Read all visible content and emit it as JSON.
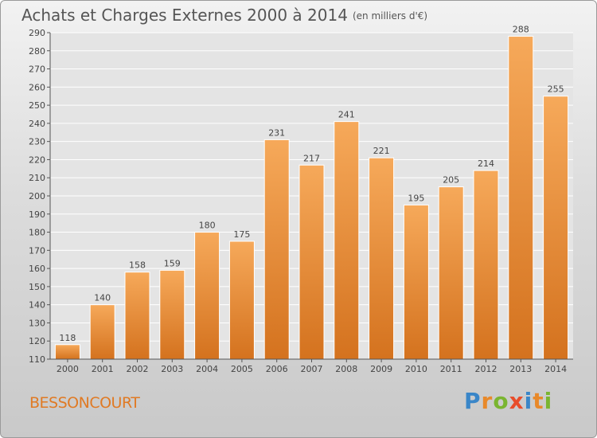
{
  "title": "Achats et Charges Externes 2000 à 2014",
  "unit": "(en milliers d'€)",
  "commune": "BESSONCOURT",
  "logo": {
    "letters": [
      {
        "char": "P",
        "color": "#3a86c8"
      },
      {
        "char": "r",
        "color": "#e8892a"
      },
      {
        "char": "o",
        "color": "#7ab530"
      },
      {
        "char": "x",
        "color": "#e84d2a"
      },
      {
        "char": "i",
        "color": "#3a86c8"
      },
      {
        "char": "t",
        "color": "#e8892a"
      },
      {
        "char": "i",
        "color": "#7ab530"
      }
    ]
  },
  "colors": {
    "bar_light": "#f6a95a",
    "bar_dark": "#d4721e",
    "axis": "#555555",
    "grid": "#ffffff"
  },
  "chart_data": {
    "type": "bar",
    "categories": [
      "2000",
      "2001",
      "2002",
      "2003",
      "2004",
      "2005",
      "2006",
      "2007",
      "2008",
      "2009",
      "2010",
      "2011",
      "2012",
      "2013",
      "2014"
    ],
    "values": [
      118,
      140,
      158,
      159,
      180,
      175,
      231,
      217,
      241,
      221,
      195,
      205,
      214,
      288,
      255
    ],
    "title": "Achats et Charges Externes 2000 à 2014",
    "xlabel": "",
    "ylabel": "",
    "ylim": [
      110,
      290
    ],
    "yticks": [
      110,
      120,
      130,
      140,
      150,
      160,
      170,
      180,
      190,
      200,
      210,
      220,
      230,
      240,
      250,
      260,
      270,
      280,
      290
    ],
    "grid": true,
    "data_labels": true
  }
}
